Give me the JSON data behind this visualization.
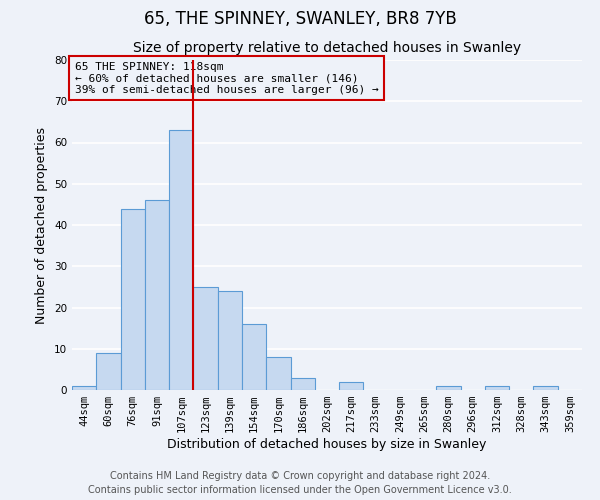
{
  "title": "65, THE SPINNEY, SWANLEY, BR8 7YB",
  "subtitle": "Size of property relative to detached houses in Swanley",
  "xlabel": "Distribution of detached houses by size in Swanley",
  "ylabel": "Number of detached properties",
  "bar_labels": [
    "44sqm",
    "60sqm",
    "76sqm",
    "91sqm",
    "107sqm",
    "123sqm",
    "139sqm",
    "154sqm",
    "170sqm",
    "186sqm",
    "202sqm",
    "217sqm",
    "233sqm",
    "249sqm",
    "265sqm",
    "280sqm",
    "296sqm",
    "312sqm",
    "328sqm",
    "343sqm",
    "359sqm"
  ],
  "bar_values": [
    1,
    9,
    44,
    46,
    63,
    25,
    24,
    16,
    8,
    3,
    0,
    2,
    0,
    0,
    0,
    1,
    0,
    1,
    0,
    1,
    0
  ],
  "bar_color": "#c6d9f0",
  "bar_edge_color": "#5b9bd5",
  "ylim": [
    0,
    80
  ],
  "yticks": [
    0,
    10,
    20,
    30,
    40,
    50,
    60,
    70,
    80
  ],
  "vline_x_index": 4.5,
  "vline_color": "#cc0000",
  "annotation_box_text": "65 THE SPINNEY: 118sqm\n← 60% of detached houses are smaller (146)\n39% of semi-detached houses are larger (96) →",
  "footer_line1": "Contains HM Land Registry data © Crown copyright and database right 2024.",
  "footer_line2": "Contains public sector information licensed under the Open Government Licence v3.0.",
  "background_color": "#eef2f9",
  "grid_color": "#ffffff",
  "title_fontsize": 12,
  "subtitle_fontsize": 10,
  "axis_label_fontsize": 9,
  "tick_fontsize": 7.5,
  "footer_fontsize": 7
}
